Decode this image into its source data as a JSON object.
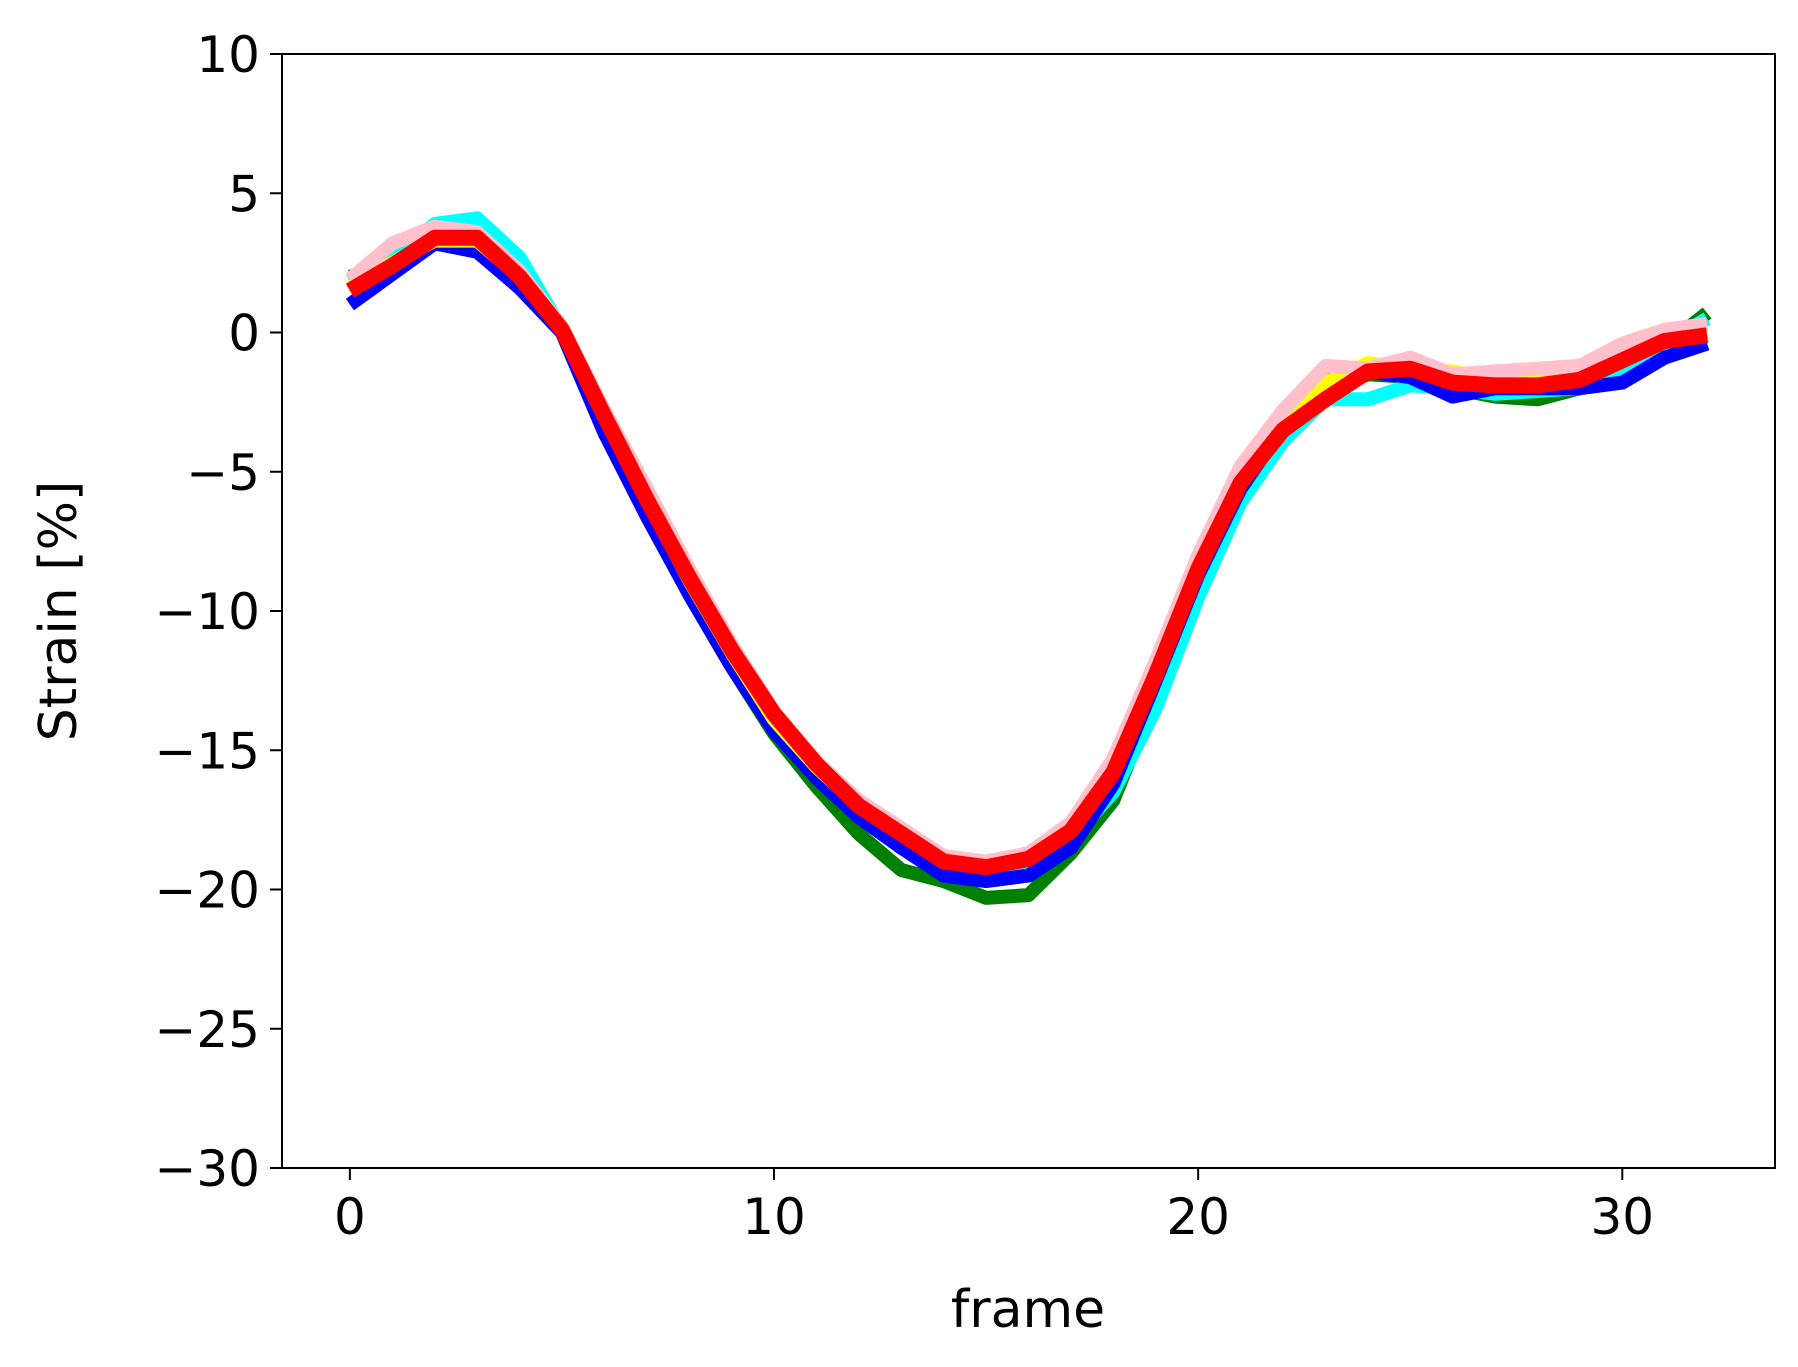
{
  "chart_data": {
    "type": "line",
    "title": "",
    "xlabel": "frame",
    "ylabel": "Strain [%]",
    "xlim": [
      -1.6,
      33.6
    ],
    "ylim": [
      -30,
      10
    ],
    "xticks": [
      0,
      10,
      20,
      30
    ],
    "yticks": [
      10,
      5,
      0,
      -5,
      -10,
      -15,
      -20,
      -25,
      -30
    ],
    "xtick_labels": [
      "0",
      "10",
      "20",
      "30"
    ],
    "ytick_labels": [
      "10",
      "5",
      "0",
      "−5",
      "−10",
      "−15",
      "−20",
      "−25",
      "−30"
    ],
    "grid": false,
    "legend": "none",
    "x": [
      0,
      1,
      2,
      3,
      4,
      5,
      6,
      7,
      8,
      9,
      10,
      11,
      12,
      13,
      14,
      15,
      16,
      17,
      18,
      19,
      20,
      21,
      22,
      23,
      24,
      25,
      26,
      27,
      28,
      29,
      30,
      31,
      32
    ],
    "series": [
      {
        "color": "#008000",
        "width": 14,
        "values": [
          2.0,
          2.4,
          3.4,
          3.2,
          1.9,
          0.0,
          -3.2,
          -6.4,
          -9.4,
          -12.0,
          -14.4,
          -16.3,
          -18.0,
          -19.3,
          -19.7,
          -20.3,
          -20.2,
          -18.7,
          -16.8,
          -13.0,
          -8.8,
          -5.6,
          -3.4,
          -2.1,
          -1.5,
          -1.6,
          -2.0,
          -2.3,
          -2.4,
          -2.0,
          -1.4,
          -0.5,
          0.7
        ]
      },
      {
        "color": "#00ffff",
        "width": 14,
        "values": [
          1.8,
          2.6,
          3.9,
          4.1,
          2.7,
          0.1,
          -3.0,
          -5.8,
          -8.8,
          -11.5,
          -14.0,
          -15.8,
          -17.3,
          -18.5,
          -19.4,
          -19.6,
          -19.4,
          -18.2,
          -16.5,
          -13.5,
          -9.5,
          -6.1,
          -3.9,
          -2.4,
          -2.4,
          -1.9,
          -2.0,
          -2.2,
          -2.1,
          -2.0,
          -1.4,
          -0.4,
          0.5
        ]
      },
      {
        "color": "#0000ff",
        "width": 14,
        "values": [
          1.0,
          2.1,
          3.2,
          2.9,
          1.6,
          0.0,
          -3.6,
          -6.6,
          -9.4,
          -12.0,
          -14.3,
          -16.0,
          -17.4,
          -18.5,
          -19.5,
          -19.7,
          -19.5,
          -18.5,
          -16.2,
          -12.5,
          -8.7,
          -5.6,
          -3.4,
          -1.7,
          -1.4,
          -1.6,
          -2.3,
          -2.0,
          -2.0,
          -2.0,
          -1.8,
          -0.9,
          -0.4
        ]
      },
      {
        "color": "#ffff00",
        "width": 14,
        "values": [
          1.6,
          2.5,
          3.3,
          3.3,
          2.0,
          0.1,
          -3.0,
          -6.0,
          -8.9,
          -11.5,
          -13.9,
          -15.6,
          -17.0,
          -18.0,
          -19.0,
          -19.1,
          -18.9,
          -17.9,
          -15.6,
          -12.1,
          -8.4,
          -5.3,
          -3.2,
          -1.8,
          -1.1,
          -1.3,
          -1.4,
          -1.7,
          -1.7,
          -1.6,
          -1.0,
          -0.3,
          0.0
        ]
      },
      {
        "color": "#ffc0cb",
        "width": 14,
        "values": [
          1.9,
          3.2,
          3.8,
          3.6,
          2.2,
          0.2,
          -2.8,
          -5.6,
          -8.5,
          -11.2,
          -13.6,
          -15.4,
          -16.8,
          -17.8,
          -18.8,
          -19.0,
          -18.7,
          -17.6,
          -15.3,
          -11.8,
          -8.0,
          -4.8,
          -2.8,
          -1.2,
          -1.3,
          -0.9,
          -1.5,
          -1.4,
          -1.3,
          -1.2,
          -0.4,
          0.1,
          0.3
        ]
      },
      {
        "color": "#ff0000",
        "width": 16,
        "values": [
          1.5,
          2.4,
          3.4,
          3.4,
          2.0,
          0.1,
          -3.0,
          -6.0,
          -8.8,
          -11.4,
          -13.7,
          -15.5,
          -17.0,
          -18.0,
          -19.0,
          -19.2,
          -18.9,
          -17.9,
          -15.8,
          -12.3,
          -8.5,
          -5.4,
          -3.5,
          -2.4,
          -1.4,
          -1.3,
          -1.8,
          -1.9,
          -1.9,
          -1.7,
          -1.0,
          -0.3,
          -0.1
        ]
      }
    ]
  }
}
